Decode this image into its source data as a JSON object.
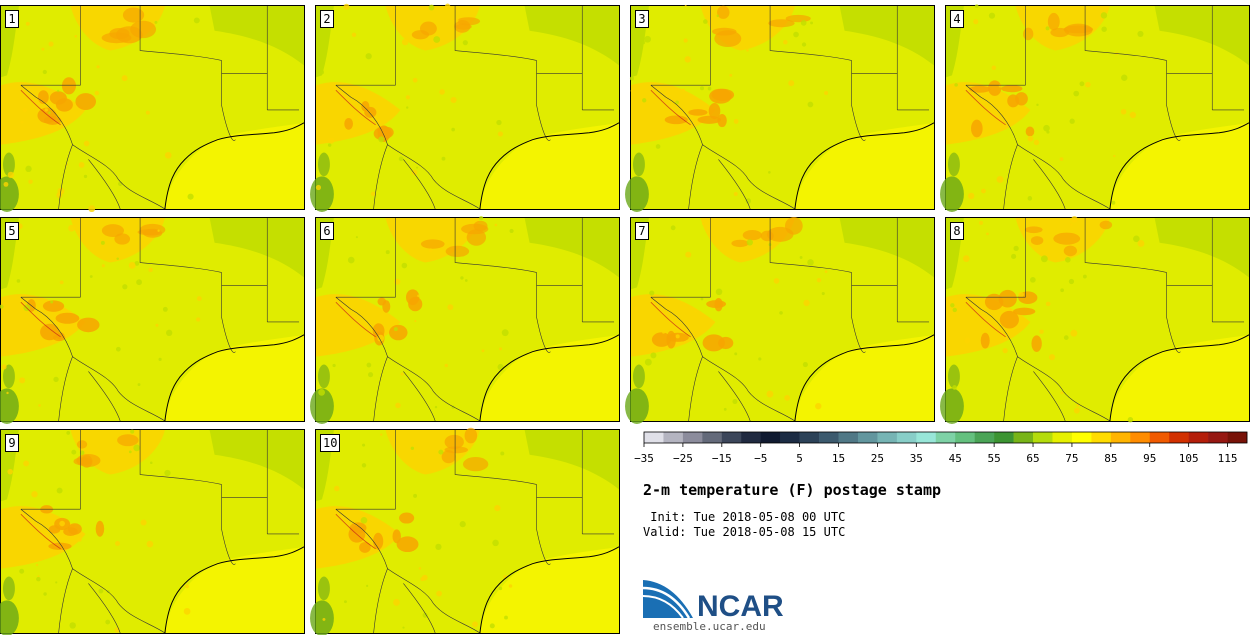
{
  "panels": [
    {
      "label": "1"
    },
    {
      "label": "2"
    },
    {
      "label": "3"
    },
    {
      "label": "4"
    },
    {
      "label": "5"
    },
    {
      "label": "6"
    },
    {
      "label": "7"
    },
    {
      "label": "8"
    },
    {
      "label": "9"
    },
    {
      "label": "10"
    }
  ],
  "colorbar": {
    "ticks": [
      "−35",
      "−25",
      "−15",
      "−5",
      "5",
      "15",
      "25",
      "35",
      "45",
      "55",
      "65",
      "75",
      "85",
      "95",
      "105",
      "115"
    ],
    "tick_values": [
      -35,
      -25,
      -15,
      -5,
      5,
      15,
      25,
      35,
      45,
      55,
      65,
      75,
      85,
      95,
      105,
      115
    ],
    "range": [
      -35,
      120
    ],
    "step": 5,
    "colors": [
      "#e0e0e8",
      "#b4b4c0",
      "#8c8c9c",
      "#646a7a",
      "#3c465a",
      "#202a40",
      "#101a30",
      "#1c2c44",
      "#2c4258",
      "#3c5a6e",
      "#507886",
      "#62969e",
      "#76b4b4",
      "#88cec8",
      "#98e6d8",
      "#7ed2a6",
      "#64c07e",
      "#4aa456",
      "#3c9432",
      "#78b418",
      "#b4dc0c",
      "#e6f000",
      "#ffff00",
      "#ffdc00",
      "#ffb400",
      "#ff8c00",
      "#f05a00",
      "#d23000",
      "#b41e0a",
      "#961812",
      "#781208"
    ]
  },
  "title": "2-m temperature (F) postage stamp",
  "init": " Init: Tue 2018-05-08 00 UTC",
  "valid": "Valid: Tue 2018-05-08 15 UTC",
  "logo": {
    "text": "NCAR",
    "url": "ensemble.ucar.edu"
  },
  "map_colors": {
    "ocean": "#f4f400",
    "land_base": "#e0ec00",
    "warm": "#fcd400",
    "hot": "#f7a500",
    "cool": "#c2de00",
    "cold": "#6aa818"
  }
}
